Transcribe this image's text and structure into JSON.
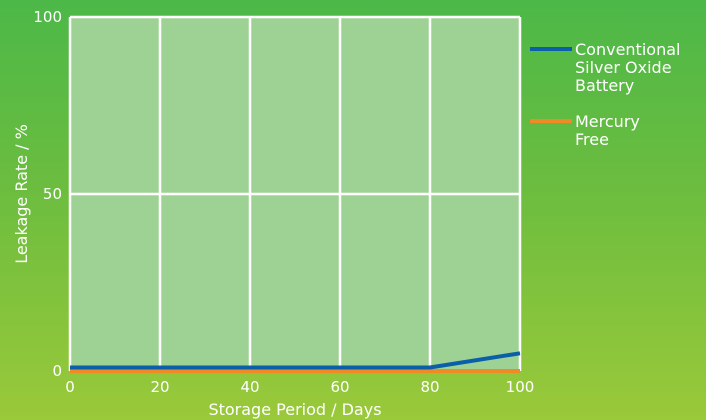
{
  "chart_data": {
    "type": "line",
    "xlabel": "Storage Period / Days",
    "ylabel": "Leakage Rate / %",
    "xlim": [
      0,
      100
    ],
    "ylim": [
      0,
      100
    ],
    "x_ticks": [
      "0",
      "20",
      "40",
      "60",
      "80",
      "100"
    ],
    "y_ticks": [
      "0",
      "50",
      "100"
    ],
    "grid": true,
    "legend_position": "right",
    "series": [
      {
        "name_lines": [
          "Conventional",
          "Silver Oxide",
          "Battery"
        ],
        "color": "#0a5fa8",
        "x": [
          0,
          20,
          40,
          60,
          80,
          100
        ],
        "y": [
          1,
          1,
          1,
          1,
          1,
          5
        ]
      },
      {
        "name_lines": [
          "Mercury",
          "Free"
        ],
        "color": "#f08a24",
        "x": [
          0,
          20,
          40,
          60,
          80,
          100
        ],
        "y": [
          0,
          0,
          0,
          0,
          0,
          0
        ]
      }
    ],
    "colors": {
      "plot_background": "#9ed294",
      "grid": "#ffffff"
    }
  }
}
